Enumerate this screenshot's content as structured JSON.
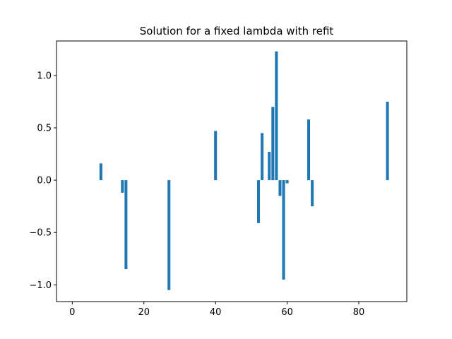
{
  "chart_data": {
    "type": "bar",
    "title": "Solution for a fixed lambda with refit",
    "xlabel": "",
    "ylabel": "",
    "xlim": [
      -4.4,
      93.4
    ],
    "ylim": [
      -1.16,
      1.33
    ],
    "xticks": [
      0,
      20,
      40,
      60,
      80
    ],
    "yticks": [
      -1.0,
      -0.5,
      0.0,
      0.5,
      1.0
    ],
    "xtick_labels": [
      "0",
      "20",
      "40",
      "60",
      "80"
    ],
    "ytick_labels": [
      "−1.0",
      "−0.5",
      "0.0",
      "0.5",
      "1.0"
    ],
    "bar_color": "#1f77b4",
    "grid": false,
    "x": [
      8,
      14,
      15,
      27,
      40,
      52,
      53,
      55,
      56,
      57,
      58,
      59,
      60,
      66,
      67,
      88
    ],
    "values": [
      0.16,
      -0.12,
      -0.85,
      -1.05,
      0.47,
      -0.41,
      0.45,
      0.27,
      0.7,
      1.23,
      -0.15,
      -0.95,
      -0.03,
      0.58,
      -0.25,
      0.75
    ]
  }
}
